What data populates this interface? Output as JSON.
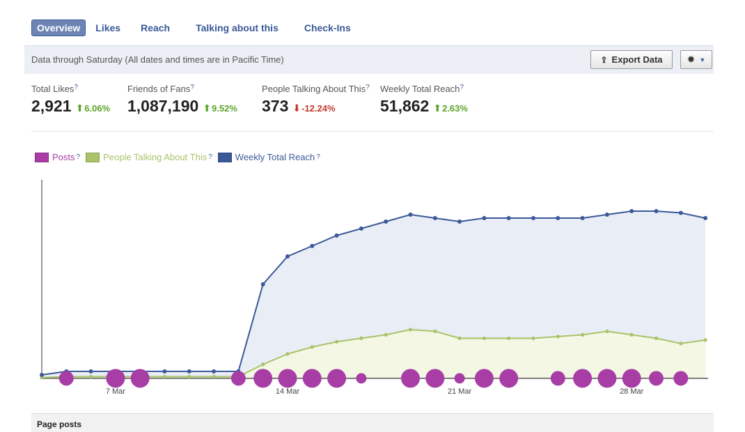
{
  "tabs": [
    {
      "label": "Overview",
      "active": true
    },
    {
      "label": "Likes"
    },
    {
      "label": "Reach"
    },
    {
      "label": "Talking about this"
    },
    {
      "label": "Check-Ins"
    }
  ],
  "toolbar": {
    "note": "Data through Saturday (All dates and times are in Pacific Time)",
    "export_label": "Export Data",
    "export_icon": "upload-icon",
    "settings_icon": "gear-icon",
    "help_mark": "?"
  },
  "metrics": [
    {
      "label": "Total Likes",
      "value": "2,921",
      "change": "6.06%",
      "direction": "up"
    },
    {
      "label": "Friends of Fans",
      "value": "1,087,190",
      "change": "9.52%",
      "direction": "up"
    },
    {
      "label": "People Talking About This",
      "value": "373",
      "change": "-12.24%",
      "direction": "down"
    },
    {
      "label": "Weekly Total Reach",
      "value": "51,862",
      "change": "2.63%",
      "direction": "up"
    }
  ],
  "colors": {
    "brand": "#3b5998",
    "posts": "#a83ea5",
    "talking": "#a9c36a",
    "reach": "#3b5998",
    "up": "#5ca52a",
    "down": "#c0392b"
  },
  "chart_data": {
    "type": "line",
    "x_ticks": [
      "7 Mar",
      "14 Mar",
      "21 Mar",
      "28 Mar"
    ],
    "x_tick_day_index": [
      3,
      10,
      17,
      24
    ],
    "legend": [
      "Posts",
      "People Talking About This",
      "Weekly Total Reach"
    ],
    "series": [
      {
        "name": "Weekly Total Reach",
        "kind": "area-line",
        "values": [
          1,
          2,
          2,
          2,
          2,
          2,
          2,
          2,
          2,
          27,
          35,
          38,
          41,
          43,
          45,
          47,
          46,
          45,
          46,
          46,
          46,
          46,
          46,
          47,
          48,
          48,
          47.5,
          46
        ]
      },
      {
        "name": "People Talking About This",
        "kind": "area-line",
        "values": [
          0.2,
          0.5,
          0.5,
          0.5,
          0.5,
          0.5,
          0.5,
          0.5,
          0.5,
          4,
          7,
          9,
          10.5,
          11.5,
          12.5,
          14,
          13.5,
          11.5,
          11.5,
          11.5,
          11.5,
          12,
          12.5,
          13.5,
          12.5,
          11.5,
          10,
          11
        ]
      },
      {
        "name": "Posts",
        "kind": "bubbles",
        "day_index": [
          1,
          3,
          4,
          8,
          9,
          10,
          11,
          12,
          13,
          15,
          16,
          17,
          18,
          19,
          21,
          22,
          23,
          24,
          25,
          26
        ],
        "sizes": [
          2,
          3,
          3,
          2,
          3,
          3,
          3,
          3,
          1,
          3,
          3,
          1,
          3,
          3,
          2,
          3,
          3,
          3,
          2,
          2
        ]
      }
    ],
    "ylim": [
      0,
      50
    ],
    "grid": false,
    "legend_position": "top-left"
  },
  "posts_section": {
    "title": "Page posts"
  }
}
